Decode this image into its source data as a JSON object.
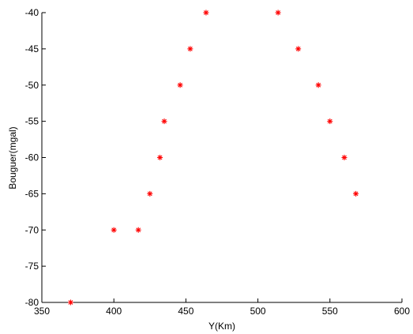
{
  "chart_data": {
    "type": "scatter",
    "title": "",
    "xlabel": "Y(Km)",
    "ylabel": "Bouguer(mgal)",
    "xlim": [
      350,
      600
    ],
    "ylim": [
      -80,
      -40
    ],
    "xticks": [
      350,
      400,
      450,
      500,
      550,
      600
    ],
    "yticks": [
      -40,
      -45,
      -50,
      -55,
      -60,
      -65,
      -70,
      -75,
      -80
    ],
    "xtick_labels": [
      "350",
      "400",
      "450",
      "500",
      "550",
      "600"
    ],
    "ytick_labels": [
      "-40",
      "-45",
      "-50",
      "-55",
      "-60",
      "-65",
      "-70",
      "-75",
      "-80"
    ],
    "grid": false,
    "marker": "asterisk",
    "marker_color": "#ff0000",
    "series": [
      {
        "x": [
          370,
          400,
          417,
          425,
          432,
          435,
          446,
          453,
          464,
          514,
          528,
          542,
          550,
          560,
          568
        ],
        "y": [
          -80,
          -70,
          -70,
          -65,
          -60,
          -55,
          -50,
          -45,
          -40,
          -40,
          -45,
          -50,
          -55,
          -60,
          -65
        ]
      }
    ]
  }
}
